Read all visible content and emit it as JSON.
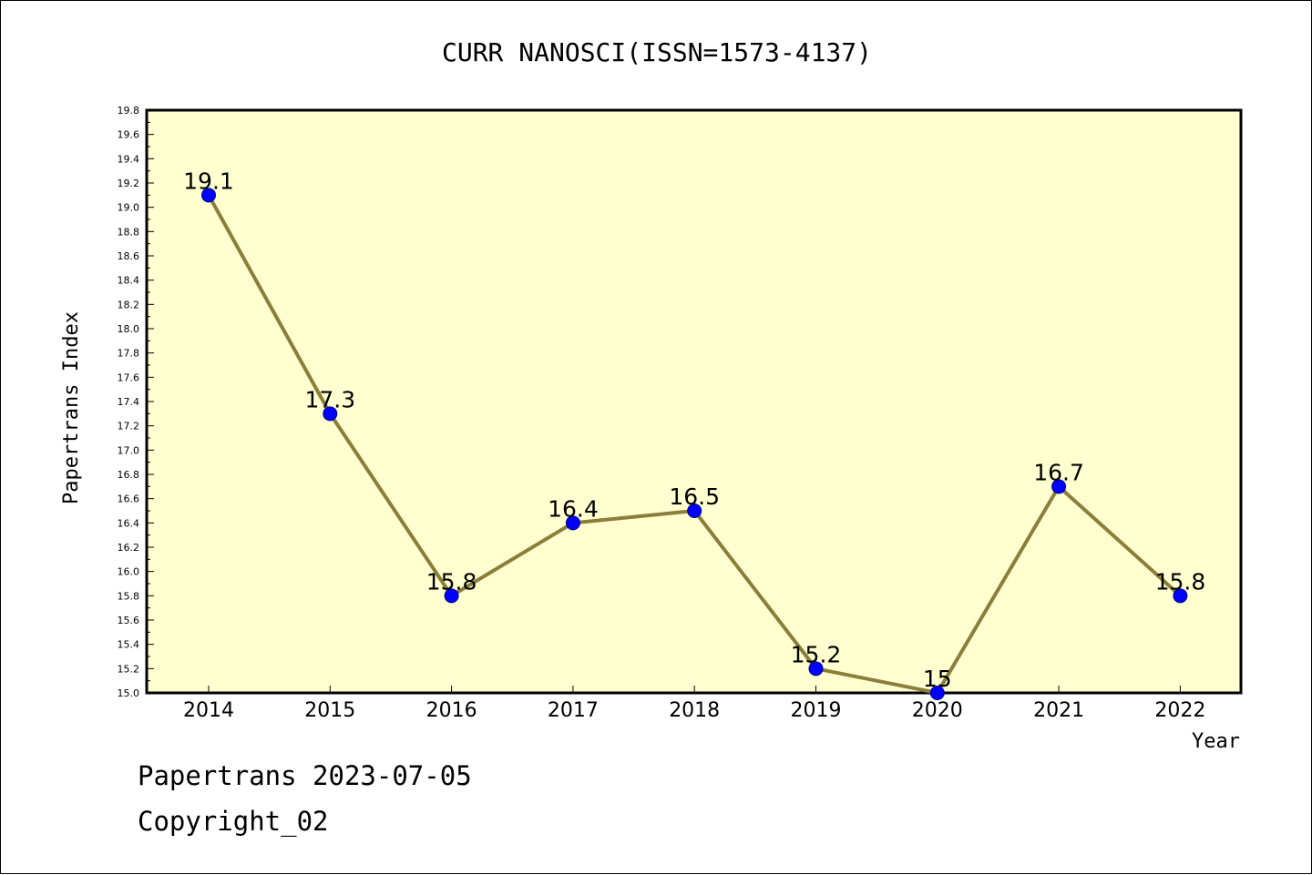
{
  "chart_data": {
    "type": "line",
    "title": "CURR NANOSCI(ISSN=1573-4137)",
    "xlabel": "Year",
    "ylabel": "Papertrans Index",
    "categories": [
      "2014",
      "2015",
      "2016",
      "2017",
      "2018",
      "2019",
      "2020",
      "2021",
      "2022"
    ],
    "series": [
      {
        "values": [
          19.1,
          17.3,
          15.8,
          16.4,
          16.5,
          15.2,
          15.0,
          16.7,
          15.8
        ]
      }
    ],
    "data_labels": [
      "19.1",
      "17.3",
      "15.8",
      "16.4",
      "16.5",
      "15.2",
      "15",
      "16.7",
      "15.8"
    ],
    "ylim": [
      15.0,
      19.8
    ],
    "yticks": [
      "15.0",
      "15.2",
      "15.4",
      "15.6",
      "15.8",
      "16.0",
      "16.2",
      "16.4",
      "16.6",
      "16.8",
      "17.0",
      "17.2",
      "17.4",
      "17.6",
      "17.8",
      "18.0",
      "18.2",
      "18.4",
      "18.6",
      "18.8",
      "19.0",
      "19.2",
      "19.4",
      "19.6",
      "19.8"
    ],
    "grid": false,
    "colors": {
      "plot_background": "#ffffd0",
      "line": "#8b7d3a",
      "marker": "#0000ff"
    }
  },
  "footer": {
    "line1": "Papertrans 2023-07-05",
    "line2": "Copyright_02"
  }
}
